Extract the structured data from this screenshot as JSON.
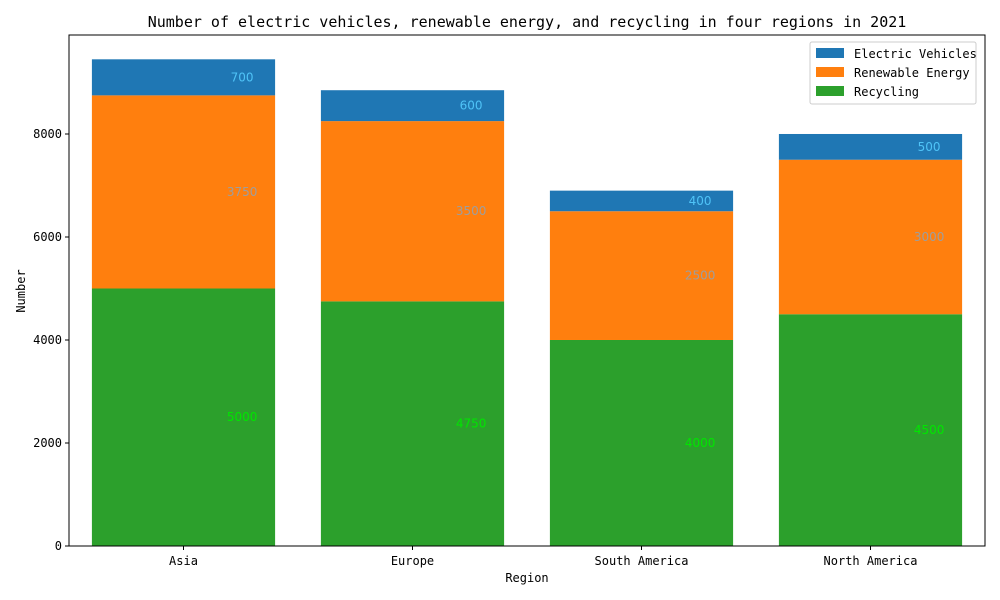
{
  "chart_data": {
    "type": "bar",
    "stacked": true,
    "title": "Number of electric vehicles, renewable energy, and recycling in four regions in 2021",
    "xlabel": "Region",
    "ylabel": "Number",
    "categories": [
      "Asia",
      "Europe",
      "South America",
      "North America"
    ],
    "series": [
      {
        "name": "Recycling",
        "values": [
          5000,
          4750,
          4000,
          4500
        ],
        "color": "#2ca02c",
        "label_color": "#00e600"
      },
      {
        "name": "Renewable Energy",
        "values": [
          3750,
          3500,
          2500,
          3000
        ],
        "color": "#ff7f0e",
        "label_color": "#9e9e9e"
      },
      {
        "name": "Electric Vehicles",
        "values": [
          700,
          600,
          400,
          500
        ],
        "color": "#1f77b4",
        "label_color": "#4fc3f7"
      }
    ],
    "legend_order": [
      "Electric Vehicles",
      "Renewable Energy",
      "Recycling"
    ],
    "legend_position": "top-right",
    "ylim": [
      0,
      9922
    ],
    "yticks": [
      0,
      2000,
      4000,
      6000,
      8000
    ],
    "grid": false
  }
}
